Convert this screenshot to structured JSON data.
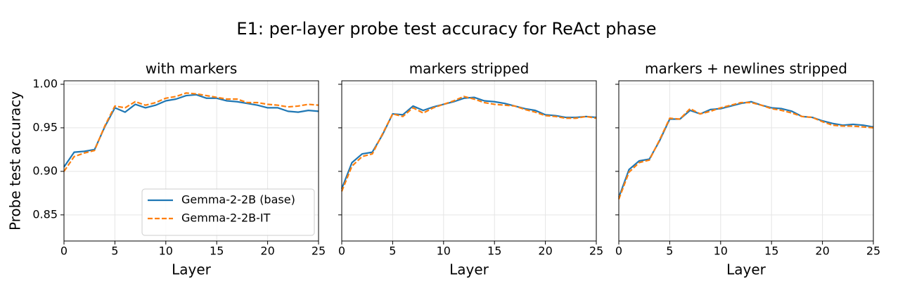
{
  "title": "E1: per-layer probe test accuracy for ReAct phase",
  "chart_data": [
    {
      "type": "line",
      "title": "with markers",
      "xlabel": "Layer",
      "ylabel": "Probe test accuracy",
      "x": [
        0,
        1,
        2,
        3,
        4,
        5,
        6,
        7,
        8,
        9,
        10,
        11,
        12,
        13,
        14,
        15,
        16,
        17,
        18,
        19,
        20,
        21,
        22,
        23,
        24,
        25
      ],
      "series": [
        {
          "name": "Gemma-2-2B (base)",
          "color": "#1f77b4",
          "linestyle": "solid",
          "values": [
            0.905,
            0.922,
            0.923,
            0.925,
            0.951,
            0.973,
            0.968,
            0.977,
            0.973,
            0.976,
            0.981,
            0.983,
            0.987,
            0.988,
            0.984,
            0.984,
            0.981,
            0.98,
            0.978,
            0.976,
            0.973,
            0.973,
            0.969,
            0.968,
            0.97,
            0.969
          ]
        },
        {
          "name": "Gemma-2-2B-IT",
          "color": "#ff7f0e",
          "linestyle": "dashed",
          "values": [
            0.9,
            0.917,
            0.921,
            0.924,
            0.952,
            0.975,
            0.973,
            0.98,
            0.976,
            0.979,
            0.984,
            0.986,
            0.99,
            0.989,
            0.987,
            0.985,
            0.983,
            0.983,
            0.979,
            0.979,
            0.977,
            0.976,
            0.974,
            0.975,
            0.977,
            0.976
          ]
        }
      ],
      "xlim": [
        0,
        25
      ],
      "xticks": [
        0,
        5,
        10,
        15,
        20,
        25
      ],
      "ylim": [
        0.82,
        1.004
      ],
      "yticks": [
        0.85,
        {
          "value": 0.9,
          "label": "0.90"
        },
        0.95,
        {
          "value": 1,
          "label": "1.00"
        }
      ],
      "grid": true,
      "legend": "lower right"
    },
    {
      "type": "line",
      "title": "markers stripped",
      "xlabel": "Layer",
      "x": [
        0,
        1,
        2,
        3,
        4,
        5,
        6,
        7,
        8,
        9,
        10,
        11,
        12,
        13,
        14,
        15,
        16,
        17,
        18,
        19,
        20,
        21,
        22,
        23,
        24,
        25
      ],
      "series": [
        {
          "color": "#1f77b4",
          "linestyle": "solid",
          "values": [
            0.88,
            0.91,
            0.92,
            0.922,
            0.942,
            0.966,
            0.965,
            0.975,
            0.97,
            0.974,
            0.977,
            0.98,
            0.984,
            0.985,
            0.981,
            0.98,
            0.978,
            0.975,
            0.972,
            0.97,
            0.965,
            0.964,
            0.962,
            0.962,
            0.963,
            0.962
          ]
        },
        {
          "color": "#ff7f0e",
          "linestyle": "dashed",
          "values": [
            0.877,
            0.906,
            0.917,
            0.92,
            0.943,
            0.966,
            0.963,
            0.973,
            0.967,
            0.973,
            0.977,
            0.981,
            0.986,
            0.983,
            0.979,
            0.977,
            0.976,
            0.975,
            0.971,
            0.968,
            0.964,
            0.963,
            0.961,
            0.961,
            0.963,
            0.961
          ]
        }
      ],
      "xlim": [
        0,
        25
      ],
      "xticks": [
        0,
        5,
        10,
        15,
        20,
        25
      ],
      "ylim": [
        0.82,
        1.004
      ],
      "yticks": [
        0.85,
        0.9,
        0.95,
        1
      ],
      "grid": true
    },
    {
      "type": "line",
      "title": "markers + newlines stripped",
      "xlabel": "Layer",
      "x": [
        0,
        1,
        2,
        3,
        4,
        5,
        6,
        7,
        8,
        9,
        10,
        11,
        12,
        13,
        14,
        15,
        16,
        17,
        18,
        19,
        20,
        21,
        22,
        23,
        24,
        25
      ],
      "series": [
        {
          "color": "#1f77b4",
          "linestyle": "solid",
          "values": [
            0.87,
            0.902,
            0.912,
            0.914,
            0.935,
            0.96,
            0.96,
            0.97,
            0.966,
            0.971,
            0.972,
            0.975,
            0.978,
            0.98,
            0.976,
            0.973,
            0.972,
            0.969,
            0.963,
            0.962,
            0.958,
            0.955,
            0.953,
            0.954,
            0.953,
            0.951
          ]
        },
        {
          "color": "#ff7f0e",
          "linestyle": "dashed",
          "values": [
            0.868,
            0.899,
            0.91,
            0.913,
            0.936,
            0.961,
            0.96,
            0.972,
            0.966,
            0.969,
            0.973,
            0.976,
            0.979,
            0.979,
            0.976,
            0.972,
            0.97,
            0.967,
            0.963,
            0.962,
            0.957,
            0.953,
            0.952,
            0.952,
            0.951,
            0.95
          ]
        }
      ],
      "xlim": [
        0,
        25
      ],
      "xticks": [
        0,
        5,
        10,
        15,
        20,
        25
      ],
      "ylim": [
        0.82,
        1.004
      ],
      "yticks": [
        0.85,
        0.9,
        0.95,
        1
      ],
      "grid": true
    }
  ]
}
